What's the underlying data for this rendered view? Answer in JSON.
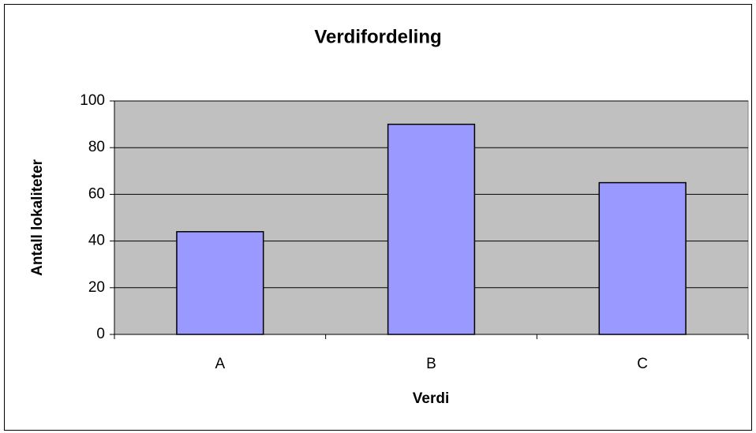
{
  "chart_data": {
    "type": "bar",
    "title": "Verdifordeling",
    "x_label": "Verdi",
    "y_label": "Antall lokaliteter",
    "categories": [
      "A",
      "B",
      "C"
    ],
    "values": [
      44,
      90,
      65
    ],
    "color": "#9999ff",
    "ylim": [
      0,
      100
    ],
    "yticks": [
      0,
      20,
      40,
      60,
      80,
      100
    ],
    "grid": true
  }
}
